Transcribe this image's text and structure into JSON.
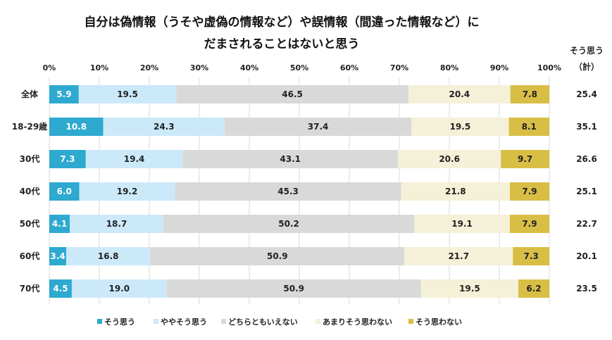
{
  "chart_data": {
    "type": "bar",
    "orientation": "horizontal",
    "stacked": "percent",
    "title_lines": [
      "自分は偽情報（うそや虚偽の情報など）や誤情報（間違った情報など）に",
      "だまされることはないと思う"
    ],
    "xlim": [
      0,
      100
    ],
    "x_ticks": [
      "0%",
      "10%",
      "20%",
      "30%",
      "40%",
      "50%",
      "60%",
      "70%",
      "80%",
      "90%",
      "100%"
    ],
    "grid": true,
    "legend_position": "bottom",
    "categories": [
      "全体",
      "18-29歳",
      "30代",
      "40代",
      "50代",
      "60代",
      "70代"
    ],
    "series": [
      {
        "name": "そう思う",
        "color": "#2EA9D0",
        "values": [
          5.9,
          10.8,
          7.3,
          6.0,
          4.1,
          3.4,
          4.5
        ]
      },
      {
        "name": "ややそう思う",
        "color": "#CCE9FA",
        "values": [
          19.5,
          24.3,
          19.4,
          19.2,
          18.7,
          16.8,
          19.0
        ]
      },
      {
        "name": "どちらともいえない",
        "color": "#D9D9D9",
        "values": [
          46.5,
          37.4,
          43.1,
          45.3,
          50.2,
          50.9,
          50.9
        ]
      },
      {
        "name": "あまりそう思わない",
        "color": "#F5F0D8",
        "values": [
          20.4,
          19.5,
          20.6,
          21.8,
          19.1,
          21.7,
          19.5
        ]
      },
      {
        "name": "そう思わない",
        "color": "#D9BE46",
        "values": [
          7.8,
          8.1,
          9.7,
          7.9,
          7.9,
          7.3,
          6.2
        ]
      }
    ],
    "totals_header_lines": [
      "そう思う",
      "（計）"
    ],
    "totals": [
      "25.4",
      "35.1",
      "26.6",
      "25.1",
      "22.7",
      "20.1",
      "23.5"
    ]
  }
}
